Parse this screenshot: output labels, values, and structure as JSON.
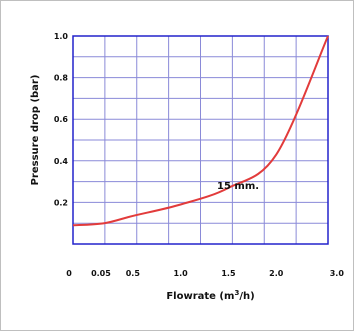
{
  "chart_data": {
    "type": "line",
    "ylabel": "Pressure drop (bar)",
    "xlabel_main": "Flowrate (m",
    "xlabel_sup": "3",
    "xlabel_end": "/h)",
    "origin_label": "0",
    "x_ticks": [
      "0.05",
      "0.5",
      "1.0",
      "1.5",
      "2.0",
      "3.0"
    ],
    "y_ticks": [
      "0.2",
      "0.4",
      "0.6",
      "0.8",
      "1.0"
    ],
    "ylim": [
      0,
      1.0
    ],
    "grid": true,
    "series": [
      {
        "name": "15 mm.",
        "points": [
          {
            "x": "0",
            "y": 0.09
          },
          {
            "x": "0.05",
            "y": 0.1
          },
          {
            "x": "0.5",
            "y": 0.135
          },
          {
            "x": "1.0",
            "y": 0.19
          },
          {
            "x": "1.5",
            "y": 0.27
          },
          {
            "x": "2.0",
            "y": 0.43
          },
          {
            "x": "3.0",
            "y": 1.0
          }
        ]
      }
    ]
  },
  "colors": {
    "plot_border": "#2222cc",
    "grid": "#8a8ad8",
    "curve": "#e23b3b"
  }
}
